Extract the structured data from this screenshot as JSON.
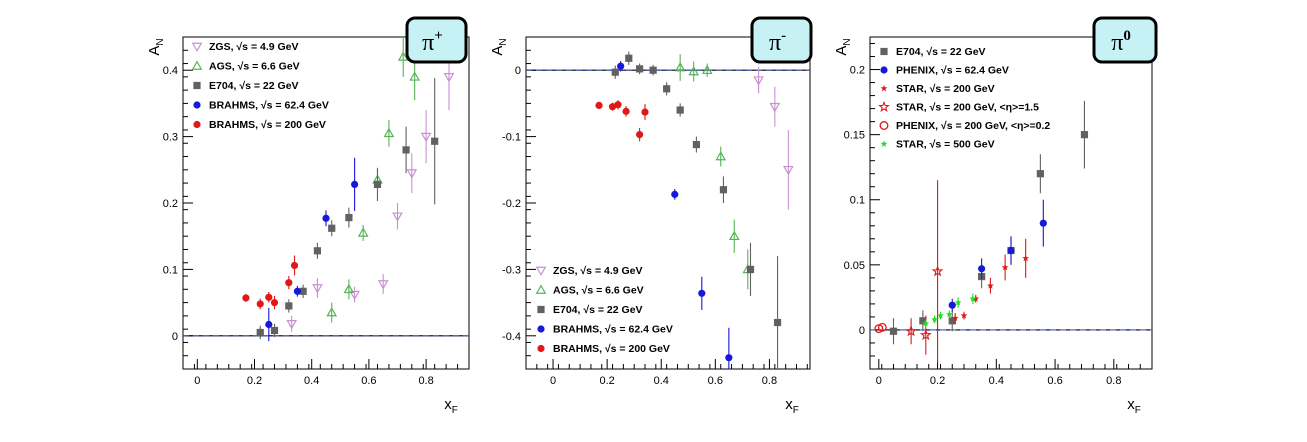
{
  "chart_data": [
    {
      "type": "scatter",
      "badge": "π",
      "badge_sup": "+",
      "ylabel": "A",
      "ylabel_sub": "N",
      "xlabel": "x",
      "xlabel_sub": "F",
      "xlim": [
        -0.05,
        0.95
      ],
      "ylim": [
        -0.05,
        0.45
      ],
      "xticks": [
        0,
        0.2,
        0.4,
        0.6,
        0.8
      ],
      "xtick_labels": [
        "0",
        "0.2",
        "0.4",
        "0.6",
        "0.8"
      ],
      "yticks": [
        0,
        0.1,
        0.2,
        0.3,
        0.4
      ],
      "ytick_labels": [
        "0",
        "0.1",
        "0.2",
        "0.3",
        "0.4"
      ],
      "legend_position": "top-left",
      "series": [
        {
          "name": "ZGS, √s = 4.9 GeV",
          "marker": "tri-down-open",
          "color": "#c890d2",
          "points": [
            [
              0.33,
              0.018,
              0.012
            ],
            [
              0.42,
              0.072,
              0.015
            ],
            [
              0.55,
              0.062,
              0.012
            ],
            [
              0.65,
              0.078,
              0.015
            ],
            [
              0.7,
              0.18,
              0.02
            ],
            [
              0.75,
              0.245,
              0.03
            ],
            [
              0.8,
              0.3,
              0.04
            ],
            [
              0.88,
              0.39,
              0.05
            ]
          ]
        },
        {
          "name": "AGS, √s = 6.6 GeV",
          "marker": "tri-up-open",
          "color": "#55b455",
          "points": [
            [
              0.47,
              0.035,
              0.015
            ],
            [
              0.53,
              0.07,
              0.015
            ],
            [
              0.58,
              0.155,
              0.012
            ],
            [
              0.63,
              0.235,
              0.015
            ],
            [
              0.67,
              0.305,
              0.02
            ],
            [
              0.72,
              0.42,
              0.03
            ],
            [
              0.76,
              0.39,
              0.035
            ],
            [
              0.73,
              0.46,
              0.03
            ]
          ]
        },
        {
          "name": "E704, √s = 22 GeV",
          "marker": "square",
          "color": "#616161",
          "points": [
            [
              0.22,
              0.005,
              0.01
            ],
            [
              0.27,
              0.008,
              0.01
            ],
            [
              0.32,
              0.045,
              0.01
            ],
            [
              0.37,
              0.067,
              0.01
            ],
            [
              0.42,
              0.128,
              0.012
            ],
            [
              0.47,
              0.162,
              0.012
            ],
            [
              0.53,
              0.178,
              0.015
            ],
            [
              0.63,
              0.228,
              0.025
            ],
            [
              0.73,
              0.28,
              0.035
            ],
            [
              0.83,
              0.293,
              0.095
            ]
          ]
        },
        {
          "name": "BRAHMS, √s = 62.4 GeV",
          "marker": "circle",
          "color": "#1818d8",
          "points": [
            [
              0.25,
              0.017,
              0.025
            ],
            [
              0.35,
              0.067,
              0.008
            ],
            [
              0.45,
              0.177,
              0.012
            ],
            [
              0.55,
              0.228,
              0.04
            ]
          ]
        },
        {
          "name": "BRAHMS, √s = 200 GeV",
          "marker": "circle",
          "color": "#e01818",
          "points": [
            [
              0.17,
              0.057,
              0.006
            ],
            [
              0.22,
              0.048,
              0.008
            ],
            [
              0.25,
              0.058,
              0.008
            ],
            [
              0.27,
              0.05,
              0.01
            ],
            [
              0.32,
              0.08,
              0.01
            ],
            [
              0.34,
              0.106,
              0.015
            ]
          ]
        }
      ]
    },
    {
      "type": "scatter",
      "badge": "π",
      "badge_sup": "-",
      "ylabel": "A",
      "ylabel_sub": "N",
      "xlabel": "x",
      "xlabel_sub": "F",
      "xlim": [
        -0.1,
        0.95
      ],
      "ylim": [
        -0.45,
        0.05
      ],
      "xticks": [
        0,
        0.2,
        0.4,
        0.6,
        0.8
      ],
      "xtick_labels": [
        "0",
        "0.2",
        "0.4",
        "0.6",
        "0.8"
      ],
      "yticks": [
        -0.4,
        -0.3,
        -0.2,
        -0.1,
        0
      ],
      "ytick_labels": [
        "-0.4",
        "-0.3",
        "-0.2",
        "-0.1",
        "0"
      ],
      "legend_position": "bottom-left",
      "series": [
        {
          "name": "ZGS, √s = 4.9 GeV",
          "marker": "tri-down-open",
          "color": "#c890d2",
          "points": [
            [
              0.76,
              -0.015,
              0.02
            ],
            [
              0.82,
              -0.055,
              0.03
            ],
            [
              0.87,
              -0.15,
              0.06
            ]
          ]
        },
        {
          "name": "AGS, √s = 6.6 GeV",
          "marker": "tri-up-open",
          "color": "#55b455",
          "points": [
            [
              0.47,
              0.004,
              0.02
            ],
            [
              0.52,
              -0.002,
              0.015
            ],
            [
              0.57,
              0.0,
              0.01
            ],
            [
              0.62,
              -0.13,
              0.015
            ],
            [
              0.67,
              -0.25,
              0.025
            ],
            [
              0.72,
              -0.3,
              0.03
            ]
          ]
        },
        {
          "name": "E704, √s = 22 GeV",
          "marker": "square",
          "color": "#616161",
          "points": [
            [
              0.23,
              -0.003,
              0.01
            ],
            [
              0.28,
              0.018,
              0.01
            ],
            [
              0.32,
              0.002,
              0.008
            ],
            [
              0.37,
              0.0,
              0.008
            ],
            [
              0.42,
              -0.028,
              0.01
            ],
            [
              0.47,
              -0.06,
              0.01
            ],
            [
              0.53,
              -0.112,
              0.012
            ],
            [
              0.63,
              -0.18,
              0.02
            ],
            [
              0.73,
              -0.3,
              0.04
            ],
            [
              0.83,
              -0.38,
              0.1
            ]
          ]
        },
        {
          "name": "BRAHMS, √s = 62.4 GeV",
          "marker": "circle",
          "color": "#1818d8",
          "points": [
            [
              0.25,
              0.006,
              0.008
            ],
            [
              0.45,
              -0.187,
              0.008
            ],
            [
              0.55,
              -0.336,
              0.025
            ],
            [
              0.65,
              -0.433,
              0.045
            ]
          ]
        },
        {
          "name": "BRAHMS, √s = 200 GeV",
          "marker": "circle",
          "color": "#e01818",
          "points": [
            [
              0.17,
              -0.053,
              0.005
            ],
            [
              0.22,
              -0.055,
              0.006
            ],
            [
              0.24,
              -0.052,
              0.007
            ],
            [
              0.27,
              -0.062,
              0.008
            ],
            [
              0.32,
              -0.097,
              0.01
            ],
            [
              0.34,
              -0.063,
              0.012
            ]
          ]
        }
      ]
    },
    {
      "type": "scatter",
      "badge": "π",
      "badge_sup": "0",
      "ylabel": "A",
      "ylabel_sub": "N",
      "xlabel": "x",
      "xlabel_sub": "F",
      "xlim": [
        -0.03,
        0.93
      ],
      "ylim": [
        -0.03,
        0.225
      ],
      "xticks": [
        0,
        0.2,
        0.4,
        0.6,
        0.8
      ],
      "xtick_labels": [
        "0",
        "0.2",
        "0.4",
        "0.6",
        "0.8"
      ],
      "yticks": [
        0,
        0.05,
        0.1,
        0.15,
        0.2
      ],
      "ytick_labels": [
        "0",
        "0.05",
        "0.1",
        "0.15",
        "0.2"
      ],
      "legend_position": "top-left",
      "series": [
        {
          "name": "E704, √s = 22 GeV",
          "marker": "square",
          "color": "#616161",
          "points": [
            [
              0.05,
              -0.001,
              0.01
            ],
            [
              0.15,
              0.007,
              0.008
            ],
            [
              0.25,
              0.007,
              0.008
            ],
            [
              0.35,
              0.041,
              0.009
            ],
            [
              0.45,
              0.061,
              0.01
            ],
            [
              0.55,
              0.12,
              0.015
            ],
            [
              0.7,
              0.15,
              0.026
            ]
          ]
        },
        {
          "name": "PHENIX, √s = 62.4 GeV",
          "marker": "circle",
          "color": "#1818d8",
          "points": [
            [
              0.25,
              0.019,
              0.005
            ],
            [
              0.35,
              0.047,
              0.008
            ],
            [
              0.45,
              0.061,
              0.011
            ],
            [
              0.56,
              0.082,
              0.018
            ]
          ]
        },
        {
          "name": "STAR, √s = 200 GeV",
          "marker": "star",
          "color": "#e01818",
          "points": [
            [
              0.26,
              0.009,
              0.004
            ],
            [
              0.29,
              0.011,
              0.003
            ],
            [
              0.33,
              0.024,
              0.003
            ],
            [
              0.38,
              0.034,
              0.006
            ],
            [
              0.43,
              0.048,
              0.01
            ],
            [
              0.5,
              0.055,
              0.015
            ]
          ]
        },
        {
          "name": "STAR, √s = 200 GeV, <η>=1.5",
          "marker": "star-open",
          "color": "#e01818",
          "points": [
            [
              0.11,
              -0.001,
              0.01
            ],
            [
              0.16,
              -0.004,
              0.015
            ],
            [
              0.2,
              0.045,
              0.07
            ]
          ]
        },
        {
          "name": "PHENIX, √s = 200 GeV, <η>=0.2",
          "marker": "circle-open",
          "color": "#e01818",
          "points": [
            [
              0.0,
              0.001,
              0.001
            ],
            [
              0.012,
              0.002,
              0.001
            ]
          ]
        },
        {
          "name": "STAR, √s = 500 GeV",
          "marker": "star",
          "color": "#22dd22",
          "points": [
            [
              0.16,
              0.005,
              0.003
            ],
            [
              0.19,
              0.008,
              0.003
            ],
            [
              0.21,
              0.011,
              0.003
            ],
            [
              0.24,
              0.012,
              0.003
            ],
            [
              0.27,
              0.021,
              0.004
            ],
            [
              0.32,
              0.024,
              0.004
            ]
          ]
        }
      ]
    }
  ]
}
